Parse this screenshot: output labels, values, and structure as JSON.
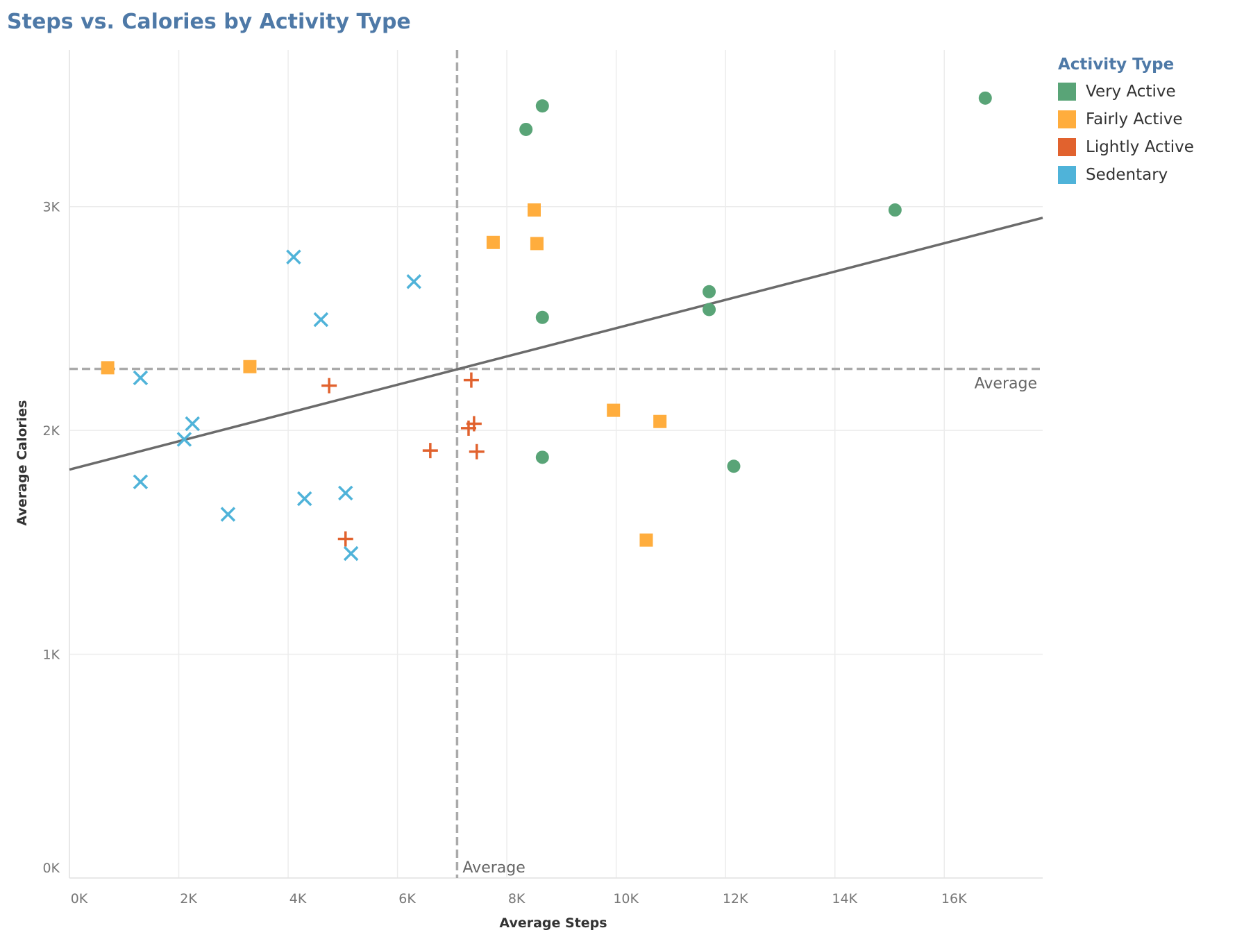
{
  "chart_data": {
    "type": "scatter",
    "title": "Steps vs. Calories by Activity Type",
    "xlabel": "Average Steps",
    "ylabel": "Average Calories",
    "xlim": [
      0,
      17800
    ],
    "ylim": [
      0,
      3700
    ],
    "x_ticks": [
      {
        "value": 0,
        "label": "0K"
      },
      {
        "value": 2000,
        "label": "2K"
      },
      {
        "value": 4000,
        "label": "4K"
      },
      {
        "value": 6000,
        "label": "6K"
      },
      {
        "value": 8000,
        "label": "8K"
      },
      {
        "value": 10000,
        "label": "10K"
      },
      {
        "value": 12000,
        "label": "12K"
      },
      {
        "value": 14000,
        "label": "14K"
      },
      {
        "value": 16000,
        "label": "16K"
      }
    ],
    "y_ticks": [
      {
        "value": 0,
        "label": "0K"
      },
      {
        "value": 1000,
        "label": "1K"
      },
      {
        "value": 2000,
        "label": "2K"
      },
      {
        "value": 3000,
        "label": "3K"
      }
    ],
    "grid": true,
    "legend": {
      "title": "Activity Type",
      "position": "top-right"
    },
    "reference_lines": {
      "x_average": {
        "value": 7090,
        "label": "Average"
      },
      "y_average": {
        "value": 2275,
        "label": "Average"
      }
    },
    "trend_line": {
      "x": [
        0,
        17800
      ],
      "y": [
        1825,
        2950
      ]
    },
    "series": [
      {
        "name": "Very Active",
        "color": "#59a477",
        "marker": "circle",
        "points": [
          [
            8350,
            3345
          ],
          [
            8650,
            3450
          ],
          [
            16750,
            3485
          ],
          [
            15100,
            2985
          ],
          [
            11700,
            2620
          ],
          [
            11700,
            2540
          ],
          [
            8650,
            2505
          ],
          [
            8650,
            1880
          ],
          [
            12150,
            1840
          ]
        ]
      },
      {
        "name": "Fairly Active",
        "color": "#ffad3d",
        "marker": "square",
        "points": [
          [
            8500,
            2985
          ],
          [
            7750,
            2840
          ],
          [
            8550,
            2835
          ],
          [
            700,
            2280
          ],
          [
            3300,
            2285
          ],
          [
            9950,
            2090
          ],
          [
            10800,
            2040
          ],
          [
            10550,
            1510
          ]
        ]
      },
      {
        "name": "Lightly Active",
        "color": "#e1622e",
        "marker": "plus",
        "points": [
          [
            4750,
            2200
          ],
          [
            7350,
            2225
          ],
          [
            7400,
            2030
          ],
          [
            7300,
            2010
          ],
          [
            6600,
            1910
          ],
          [
            7450,
            1905
          ],
          [
            5050,
            1515
          ]
        ]
      },
      {
        "name": "Sedentary",
        "color": "#4fb3d9",
        "marker": "x",
        "points": [
          [
            4100,
            2775
          ],
          [
            6300,
            2665
          ],
          [
            4600,
            2495
          ],
          [
            1300,
            2235
          ],
          [
            2250,
            2030
          ],
          [
            2100,
            1960
          ],
          [
            1300,
            1770
          ],
          [
            5050,
            1720
          ],
          [
            4300,
            1695
          ],
          [
            2900,
            1625
          ],
          [
            5150,
            1450
          ]
        ]
      }
    ]
  }
}
